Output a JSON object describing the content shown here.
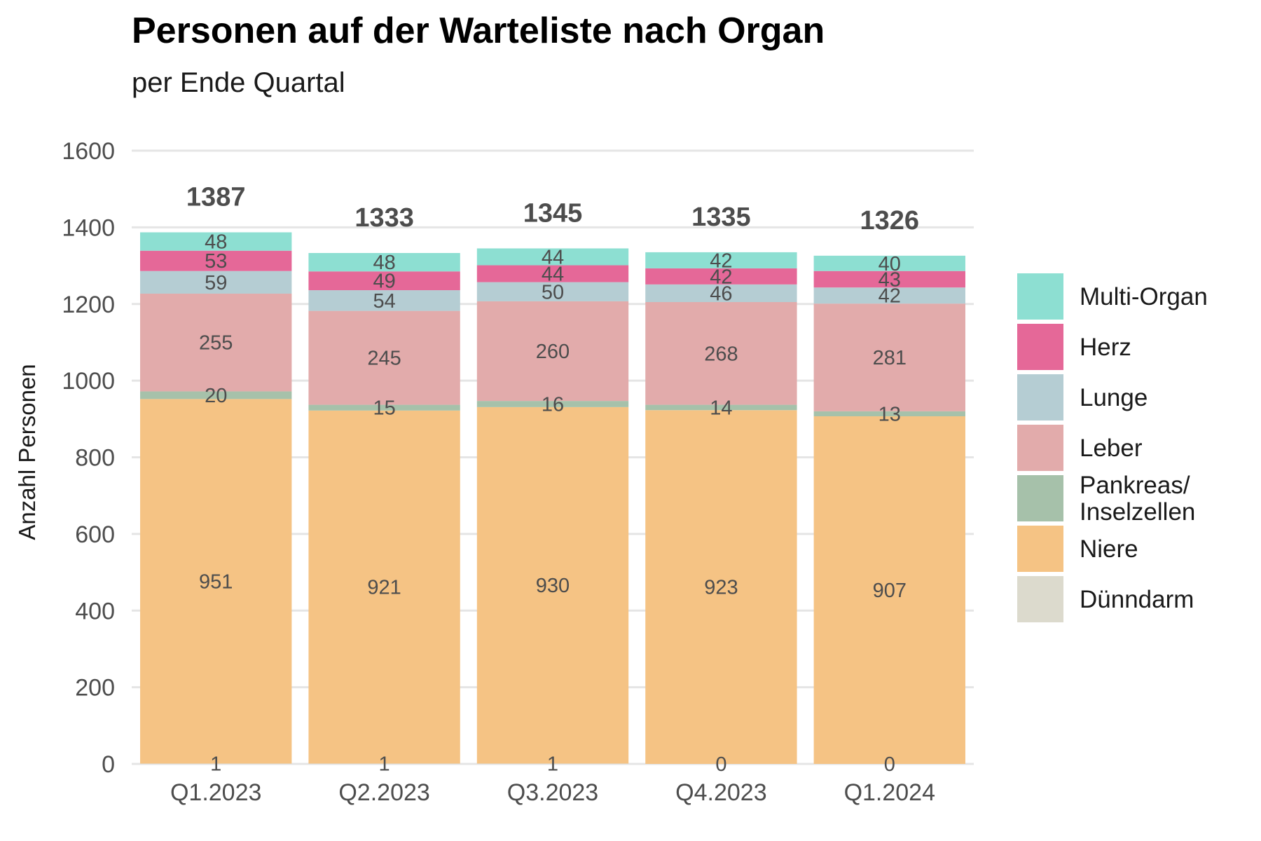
{
  "header": {
    "title": "Personen auf der Warteliste nach Organ",
    "subtitle": "per Ende Quartal"
  },
  "chart_data": {
    "type": "bar",
    "stacked": true,
    "categories": [
      "Q1.2023",
      "Q2.2023",
      "Q3.2023",
      "Q4.2023",
      "Q1.2024"
    ],
    "ylabel": "Anzahl Personen",
    "xlabel": "",
    "ylim": [
      0,
      1600
    ],
    "yticks": [
      0,
      200,
      400,
      600,
      800,
      1000,
      1200,
      1400,
      1600
    ],
    "grid": true,
    "legend_position": "right",
    "totals": [
      1387,
      1333,
      1345,
      1335,
      1326
    ],
    "series": [
      {
        "name": "Dünndarm",
        "color": "#dcdacd",
        "values": [
          1,
          1,
          1,
          0,
          0
        ]
      },
      {
        "name": "Niere",
        "color": "#f5c384",
        "values": [
          951,
          921,
          930,
          923,
          907
        ]
      },
      {
        "name": "Pankreas/ Inselzellen",
        "legend_lines": [
          "Pankreas/",
          "Inselzellen"
        ],
        "color": "#a6c1aa",
        "values": [
          20,
          15,
          16,
          14,
          13
        ]
      },
      {
        "name": "Leber",
        "color": "#e2abab",
        "values": [
          255,
          245,
          260,
          268,
          281
        ]
      },
      {
        "name": "Lunge",
        "color": "#b5cdd3",
        "values": [
          59,
          54,
          50,
          46,
          42
        ]
      },
      {
        "name": "Herz",
        "color": "#e56898",
        "values": [
          53,
          49,
          44,
          42,
          43
        ]
      },
      {
        "name": "Multi-Organ",
        "color": "#8ddfd2",
        "values": [
          48,
          48,
          44,
          42,
          40
        ]
      }
    ],
    "legend_order": [
      "Multi-Organ",
      "Herz",
      "Lunge",
      "Leber",
      "Pankreas/ Inselzellen",
      "Niere",
      "Dünndarm"
    ]
  }
}
